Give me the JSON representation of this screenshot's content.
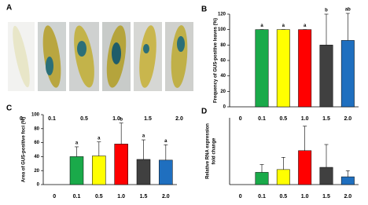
{
  "panel_a": {
    "label": "A",
    "labels": [
      "0",
      "0.1",
      "0.5",
      "1.0",
      "1.5",
      "2.0"
    ]
  },
  "chart_data": [
    {
      "type": "bar",
      "panel": "B",
      "ylabel": [
        "Frequency of GUS-positive leaves (%)"
      ],
      "categories": [
        "0",
        "0.1",
        "0.5",
        "1.0",
        "1.5",
        "2.0"
      ],
      "values": [
        0,
        100,
        100,
        100,
        80,
        86
      ],
      "errors": [
        null,
        0,
        0,
        0,
        40,
        35
      ],
      "letters": [
        null,
        "a",
        "a",
        "a",
        "b",
        "ab"
      ],
      "colors": [
        "#ffffff",
        "#1aaa4a",
        "#ffff00",
        "#ff0000",
        "#404040",
        "#1f6fbf"
      ],
      "ylim": [
        0,
        120
      ],
      "yticks": [
        0,
        20,
        40,
        60,
        80,
        100,
        120
      ]
    },
    {
      "type": "bar",
      "panel": "C",
      "ylabel": [
        "Area of GUS-positive foci (%)"
      ],
      "categories": [
        "0",
        "0.1",
        "0.5",
        "1.0",
        "1.5",
        "2.0"
      ],
      "values": [
        0,
        40,
        41,
        58,
        36,
        35
      ],
      "errors": [
        null,
        14,
        20,
        30,
        28,
        22
      ],
      "letters": [
        null,
        "a",
        "a",
        "b",
        "a",
        "a"
      ],
      "colors": [
        "#ffffff",
        "#1aaa4a",
        "#ffff00",
        "#ff0000",
        "#404040",
        "#1f6fbf"
      ],
      "ylim": [
        0,
        100
      ],
      "yticks": [
        0,
        20,
        40,
        60,
        80,
        100
      ]
    },
    {
      "type": "bar",
      "panel": "D",
      "ylabel": [
        "Relative RNA expression",
        "fold change"
      ],
      "categories": [
        "0",
        "0.1",
        "0.5",
        "1.0",
        "1.5",
        "2.0"
      ],
      "values": [
        0,
        2.2,
        2.7,
        6.1,
        3.1,
        1.4
      ],
      "errors": [
        null,
        1.4,
        2.2,
        4.4,
        4.1,
        1.1
      ],
      "colors": [
        "#ffffff",
        "#1aaa4a",
        "#ffff00",
        "#ff0000",
        "#404040",
        "#1f6fbf"
      ],
      "ylim": [
        0,
        12
      ],
      "yticks": []
    }
  ]
}
